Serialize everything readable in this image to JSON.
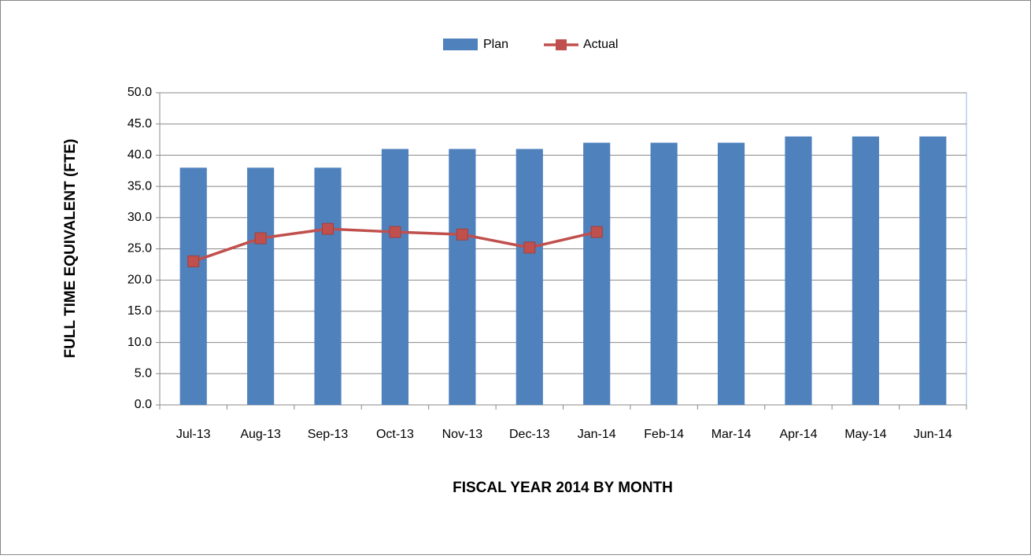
{
  "chart_data": {
    "type": "bar-line",
    "x_label": "FISCAL YEAR 2014 BY MONTH",
    "y_label": "FULL TIME EQUIVALENT (FTE)",
    "categories": [
      "Jul-13",
      "Aug-13",
      "Sep-13",
      "Oct-13",
      "Nov-13",
      "Dec-13",
      "Jan-14",
      "Feb-14",
      "Mar-14",
      "Apr-14",
      "May-14",
      "Jun-14"
    ],
    "series": [
      {
        "name": "Plan",
        "type": "bar",
        "color": "#4f81bd",
        "values": [
          38,
          38,
          38,
          41,
          41,
          41,
          42,
          42,
          42,
          43,
          43,
          43
        ]
      },
      {
        "name": "Actual",
        "type": "line",
        "color": "#c0504d",
        "values": [
          23,
          26.7,
          28.2,
          27.7,
          27.3,
          25.2,
          27.7,
          null,
          null,
          null,
          null,
          null
        ]
      }
    ],
    "ylim": [
      0,
      50
    ],
    "yticks": [
      {
        "value": 0,
        "label": "0.0"
      },
      {
        "value": 5,
        "label": "5.0"
      },
      {
        "value": 10,
        "label": "10.0"
      },
      {
        "value": 15,
        "label": "15.0"
      },
      {
        "value": 20,
        "label": "20.0"
      },
      {
        "value": 25,
        "label": "25.0"
      },
      {
        "value": 30,
        "label": "30.0"
      },
      {
        "value": 35,
        "label": "35.0"
      },
      {
        "value": 40,
        "label": "40.0"
      },
      {
        "value": 45,
        "label": "45.0"
      },
      {
        "value": 50,
        "label": "50.0"
      }
    ],
    "grid": true,
    "legend": "top"
  }
}
